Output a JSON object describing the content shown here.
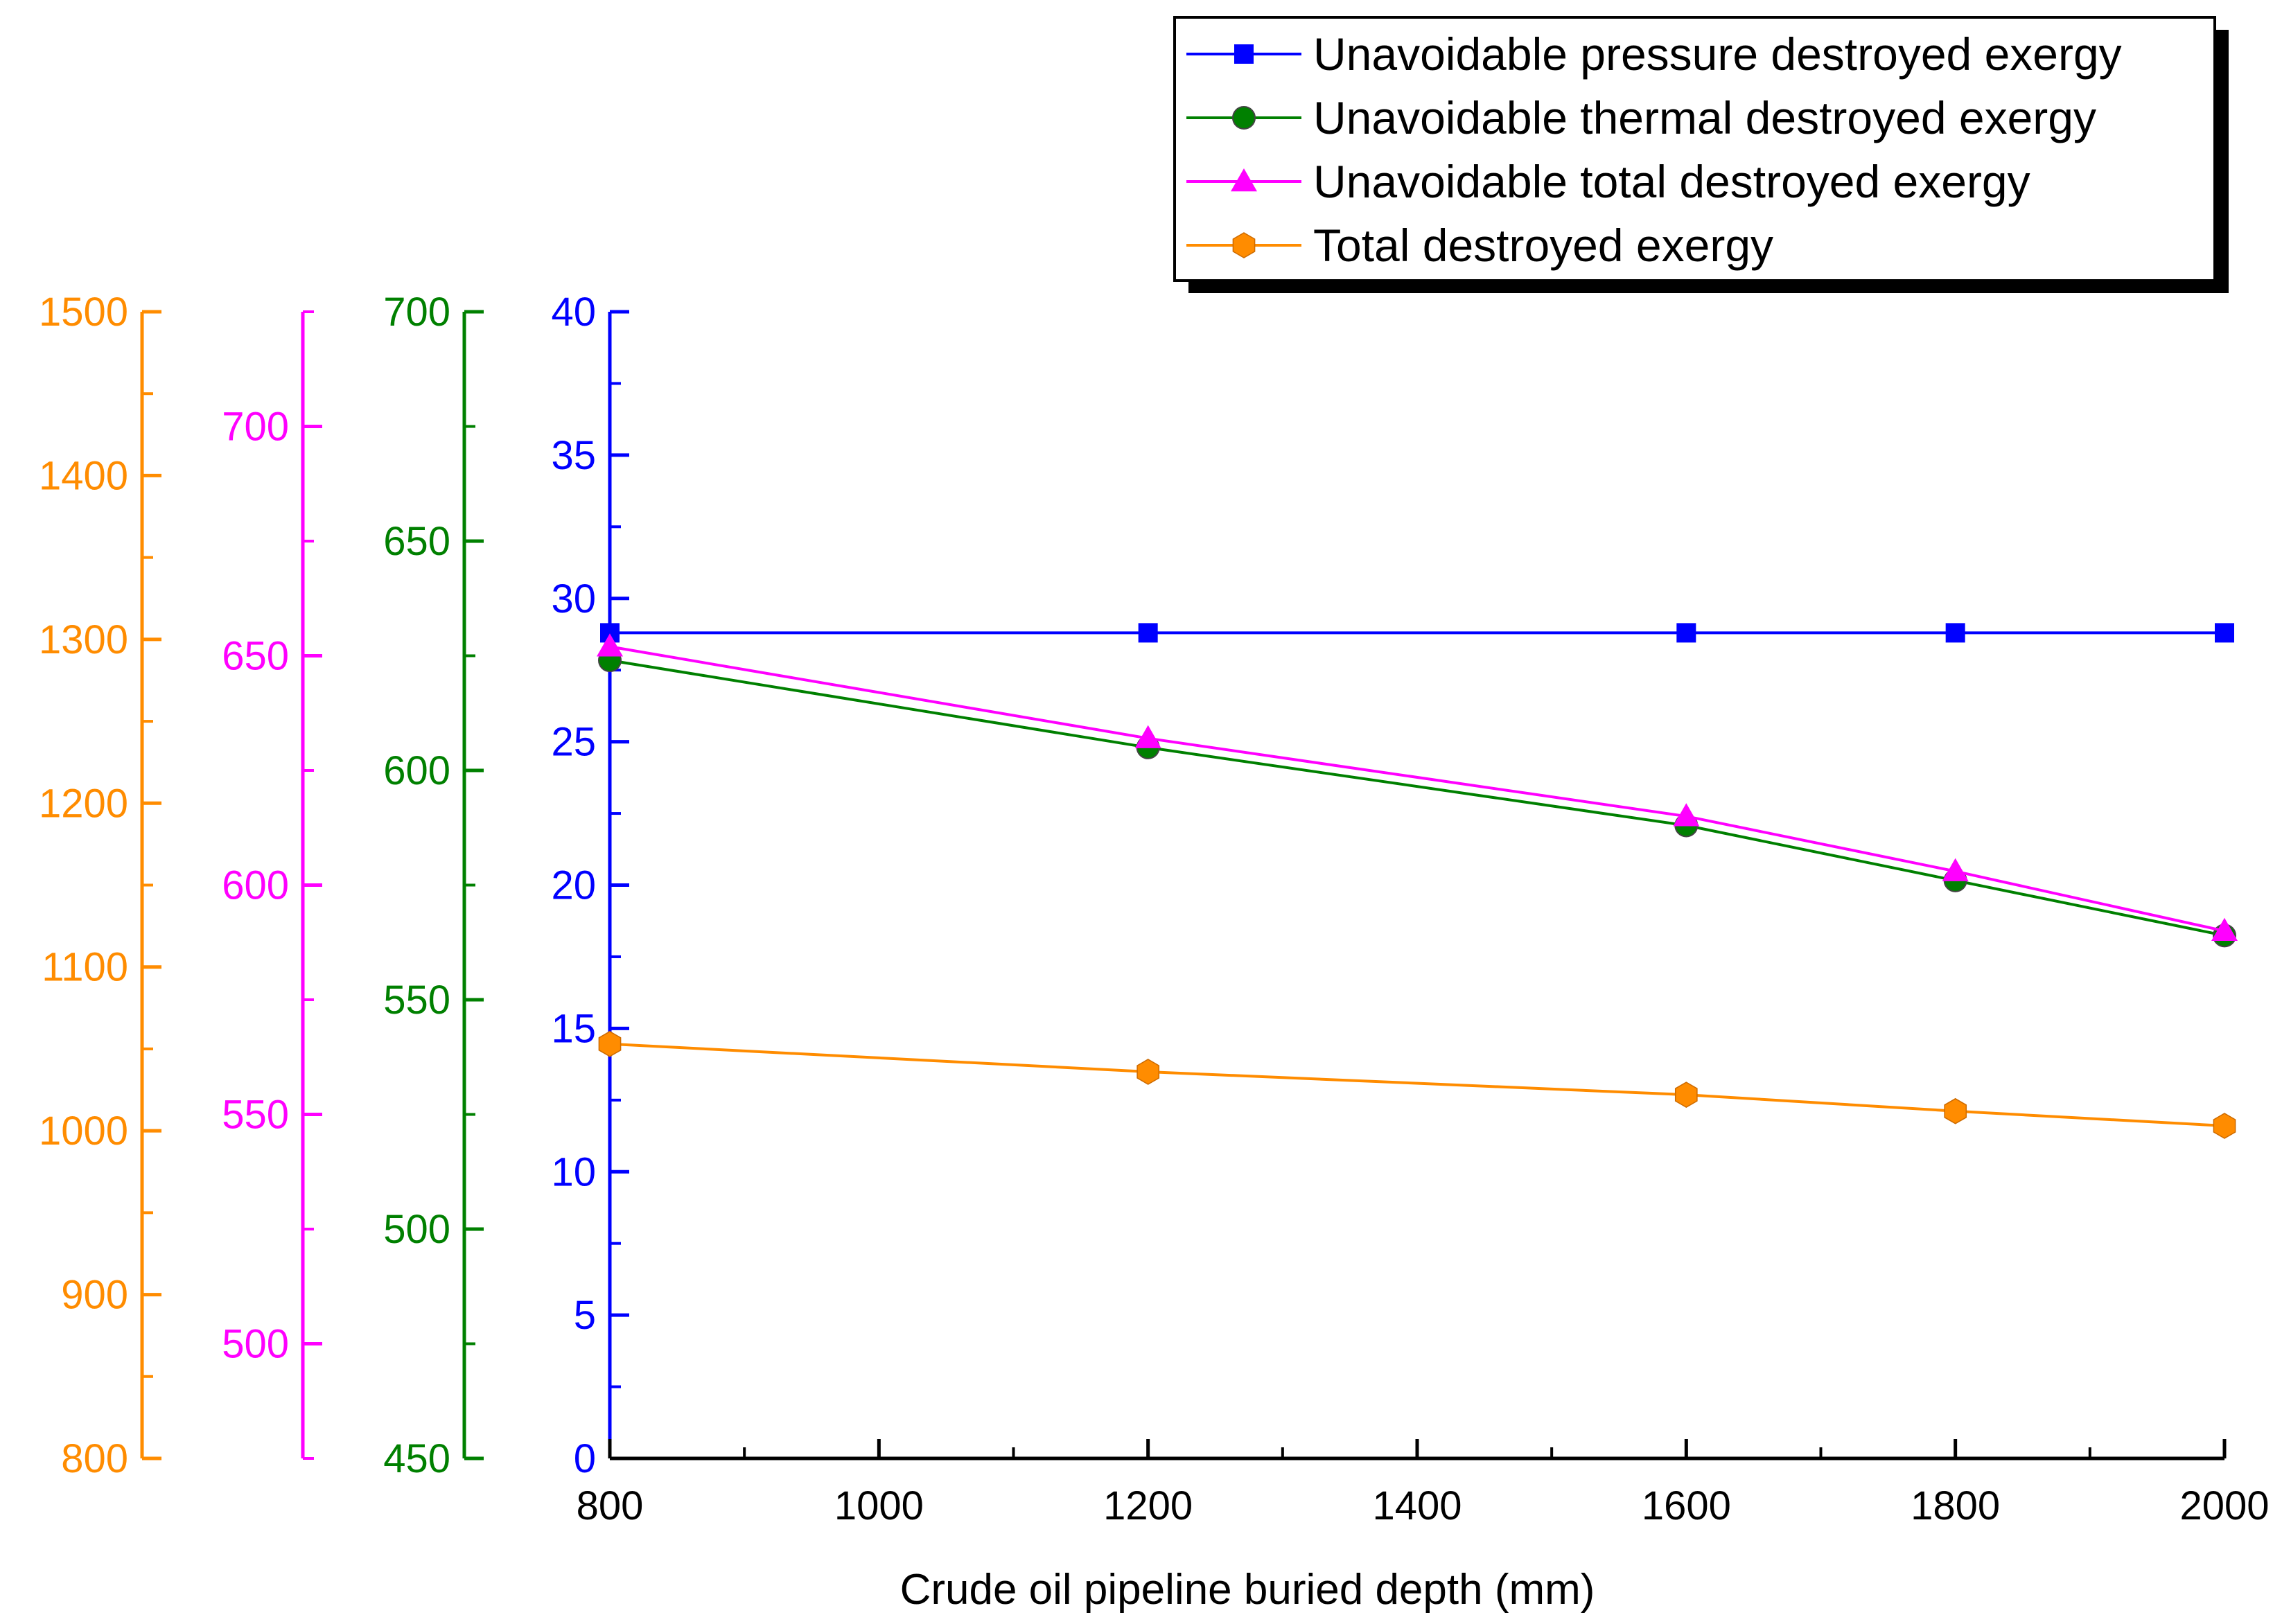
{
  "chart_data": {
    "type": "line",
    "xlabel": "Crude oil pipeline buried depth (mm)",
    "x": [
      800,
      1200,
      1600,
      1800,
      2000
    ],
    "xlim": [
      800,
      2000
    ],
    "x_ticks": [
      800,
      1000,
      1200,
      1400,
      1600,
      1800,
      2000
    ],
    "axes": [
      {
        "id": "total",
        "ylim": [
          800,
          1500
        ],
        "ticks": [
          800,
          900,
          1000,
          1100,
          1200,
          1300,
          1400,
          1500
        ],
        "color": "#FF8C00"
      },
      {
        "id": "unavoidable_total",
        "ylim": [
          475,
          725
        ],
        "ticks": [
          500,
          550,
          600,
          650,
          700
        ],
        "color": "#FF00FF"
      },
      {
        "id": "thermal",
        "ylim": [
          450,
          700
        ],
        "ticks": [
          450,
          500,
          550,
          600,
          650,
          700
        ],
        "color": "#008000"
      },
      {
        "id": "pressure",
        "ylim": [
          0,
          40
        ],
        "ticks": [
          0,
          5,
          10,
          15,
          20,
          25,
          30,
          35,
          40
        ],
        "color": "#0000FF"
      }
    ],
    "series": [
      {
        "name": "Unavoidable pressure destroyed exergy",
        "axis": "pressure",
        "color": "#0000FF",
        "marker": "square",
        "values": [
          28.8,
          28.8,
          28.8,
          28.8,
          28.8
        ]
      },
      {
        "name": "Unavoidable thermal destroyed exergy",
        "axis": "thermal",
        "color": "#008000",
        "marker": "circle",
        "values": [
          624,
          605,
          588,
          576,
          564
        ]
      },
      {
        "name": "Unavoidable total destroyed exergy",
        "axis": "unavoidable_total",
        "color": "#FF00FF",
        "marker": "triangle",
        "values": [
          652,
          632,
          615,
          603,
          590
        ]
      },
      {
        "name": "Total destroyed exergy",
        "axis": "total",
        "color": "#FF8C00",
        "marker": "hexagon",
        "values": [
          1053,
          1036,
          1022,
          1012,
          1003
        ]
      }
    ],
    "legend": {
      "placement": "top-right"
    }
  }
}
